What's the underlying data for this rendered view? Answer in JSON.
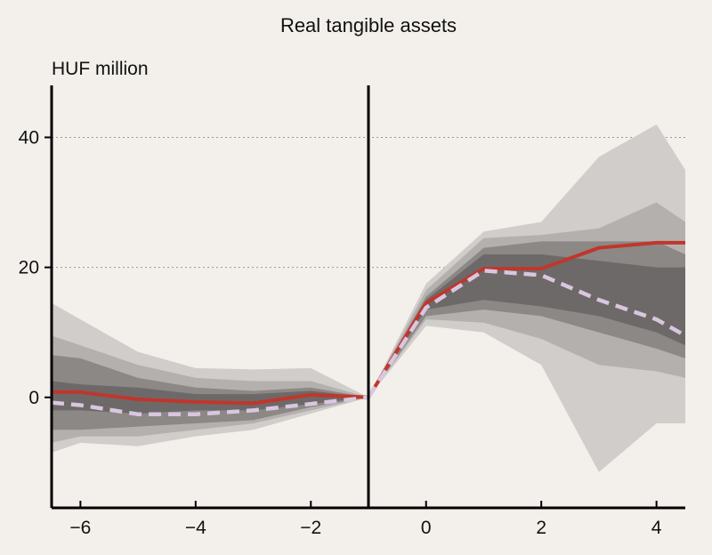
{
  "chart_data": {
    "type": "line",
    "title": "Real tangible assets",
    "ylabel": "HUF million",
    "xlabel": "",
    "xlim": [
      -6.5,
      4.5
    ],
    "ylim": [
      -17,
      48
    ],
    "xticks": [
      -6,
      -4,
      -2,
      0,
      2,
      4
    ],
    "xtick_labels": [
      "−6",
      "−4",
      "−2",
      "0",
      "2",
      "4"
    ],
    "yticks": [
      0,
      20,
      40
    ],
    "ytick_labels": [
      "0",
      "20",
      "40"
    ],
    "grid": "horizontal dotted",
    "event_line_x": -1,
    "bands": [
      {
        "color": "#d0cdcb",
        "pre": {
          "x": [
            -6.5,
            -6,
            -5,
            -4,
            -3,
            -2,
            -1
          ],
          "upper": [
            14.5,
            12,
            7,
            4.5,
            4.3,
            4.5,
            0
          ],
          "lower": [
            -8.5,
            -7,
            -7.5,
            -6,
            -5,
            -2.5,
            0
          ]
        },
        "post": {
          "x": [
            -1,
            0,
            1,
            2,
            3,
            4,
            4.5
          ],
          "upper": [
            0,
            17.5,
            25.5,
            27,
            37,
            42,
            35
          ],
          "lower": [
            0,
            11,
            10,
            5,
            -11.5,
            -4,
            -4
          ]
        }
      },
      {
        "color": "#b4b0ae",
        "pre": {
          "x": [
            -6.5,
            -6,
            -5,
            -4,
            -3,
            -2,
            -1
          ],
          "upper": [
            9.5,
            8,
            5,
            3,
            2.5,
            2.5,
            0
          ],
          "lower": [
            -7,
            -6,
            -6,
            -5,
            -4,
            -2,
            0
          ]
        },
        "post": {
          "x": [
            -1,
            0,
            1,
            2,
            3,
            4,
            4.5
          ],
          "upper": [
            0,
            16.5,
            24.5,
            25,
            26,
            30,
            27
          ],
          "lower": [
            0,
            12,
            11.5,
            9,
            5,
            4,
            3
          ]
        }
      },
      {
        "color": "#8c8886",
        "pre": {
          "x": [
            -6.5,
            -6,
            -5,
            -4,
            -3,
            -2,
            -1
          ],
          "upper": [
            6.5,
            6,
            3,
            1.5,
            1,
            1.5,
            0
          ],
          "lower": [
            -5,
            -5,
            -4.5,
            -4,
            -3.5,
            -1.5,
            0
          ]
        },
        "post": {
          "x": [
            -1,
            0,
            1,
            2,
            3,
            4,
            4.5
          ],
          "upper": [
            0,
            15.5,
            23,
            24,
            24,
            24,
            22
          ],
          "lower": [
            0,
            12.5,
            13.5,
            12.5,
            10,
            7.5,
            6
          ]
        }
      },
      {
        "color": "#6d6968",
        "pre": {
          "x": [
            -6.5,
            -6,
            -5,
            -4,
            -3,
            -2,
            -1
          ],
          "upper": [
            2.5,
            2,
            1.5,
            0.5,
            0.5,
            1,
            0
          ],
          "lower": [
            -2,
            -2,
            -2.5,
            -2,
            -2,
            -1,
            0
          ]
        },
        "post": {
          "x": [
            -1,
            0,
            1,
            2,
            3,
            4,
            4.5
          ],
          "upper": [
            0,
            15,
            22,
            22,
            21,
            20,
            20
          ],
          "lower": [
            0,
            13.5,
            15,
            14,
            12.5,
            10,
            8
          ]
        }
      }
    ],
    "series": [
      {
        "style": "solid-red",
        "color": "#c0362c",
        "pre": {
          "x": [
            -6.5,
            -6,
            -5,
            -4,
            -3,
            -2,
            -1
          ],
          "y": [
            0.8,
            0.8,
            -0.3,
            -0.7,
            -0.9,
            0.4,
            0
          ]
        },
        "post": {
          "x": [
            -1,
            0,
            1,
            2,
            3,
            4,
            4.5
          ],
          "y": [
            0,
            14.5,
            19.8,
            19.8,
            23,
            23.8,
            23.8
          ]
        }
      },
      {
        "style": "dashed-pink",
        "color": "#d9c6df",
        "pre": {
          "x": [
            -6.5,
            -6,
            -5,
            -4,
            -3,
            -2,
            -1
          ],
          "y": [
            -0.8,
            -1.2,
            -2.6,
            -2.6,
            -2,
            -1,
            0
          ]
        },
        "post": {
          "x": [
            -1,
            0,
            1,
            2,
            3,
            4,
            4.5
          ],
          "y": [
            0,
            13.8,
            19.5,
            18.8,
            15,
            12,
            9.5
          ]
        }
      }
    ]
  }
}
